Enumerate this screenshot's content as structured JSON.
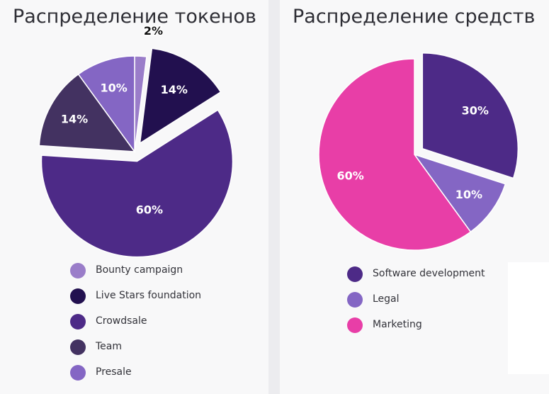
{
  "chart_data": [
    {
      "type": "pie",
      "title": "Распределение токенов",
      "categories": [
        "Bounty campaign",
        "Live Stars foundation",
        "Crowdsale",
        "Team",
        "Presale"
      ],
      "values": [
        2,
        14,
        60,
        14,
        10
      ],
      "labels": [
        "2%",
        "14%",
        "60%",
        "14%",
        "10%"
      ],
      "colors": [
        "#9a7dc9",
        "#22104f",
        "#4d2a87",
        "#433261",
        "#8466c4"
      ],
      "exploded": [
        "Live Stars foundation",
        "Crowdsale"
      ],
      "legend": "bottom"
    },
    {
      "type": "pie",
      "title": "Распределение средств",
      "categories": [
        "Software development",
        "Legal",
        "Marketing"
      ],
      "values": [
        30,
        10,
        60
      ],
      "labels": [
        "30%",
        "10%",
        "60%"
      ],
      "colors": [
        "#4d2a87",
        "#8466c4",
        "#e83ea7"
      ],
      "exploded": [
        "Software development"
      ],
      "legend": "bottom"
    }
  ]
}
